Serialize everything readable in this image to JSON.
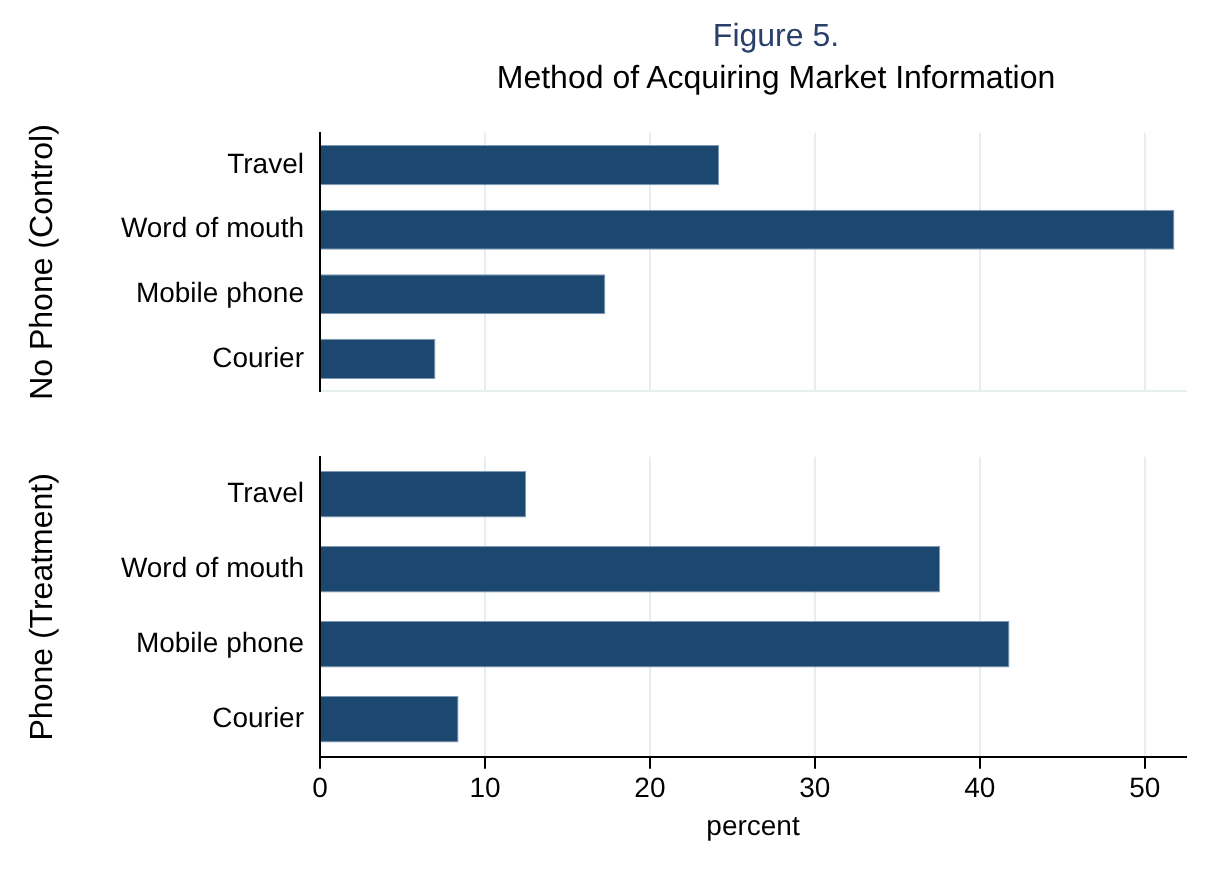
{
  "chart_data": [
    {
      "type": "bar",
      "title": "Figure 5.",
      "subtitle": "Method of Acquiring Market Information",
      "ylabel": "No Phone (Control)",
      "orientation": "horizontal",
      "categories": [
        "Travel",
        "Word of mouth",
        "Mobile phone",
        "Courier"
      ],
      "values": [
        24.2,
        51.8,
        17.3,
        7.0
      ],
      "color": "#1c4870",
      "xlim": [
        0,
        52.5
      ],
      "xticks": [
        0,
        10,
        20,
        30,
        40,
        50
      ],
      "tick_labels": "y",
      "grid": "x",
      "legend": false
    },
    {
      "type": "bar",
      "xlabel": "percent",
      "ylabel": "Phone (Treatment)",
      "orientation": "horizontal",
      "categories": [
        "Travel",
        "Word of mouth",
        "Mobile phone",
        "Courier"
      ],
      "values": [
        12.5,
        37.6,
        41.8,
        8.4
      ],
      "color": "#1c4870",
      "xlim": [
        0,
        52.5
      ],
      "xticks": [
        0,
        10,
        20,
        30,
        40,
        50
      ],
      "grid": "x",
      "legend": false
    }
  ]
}
